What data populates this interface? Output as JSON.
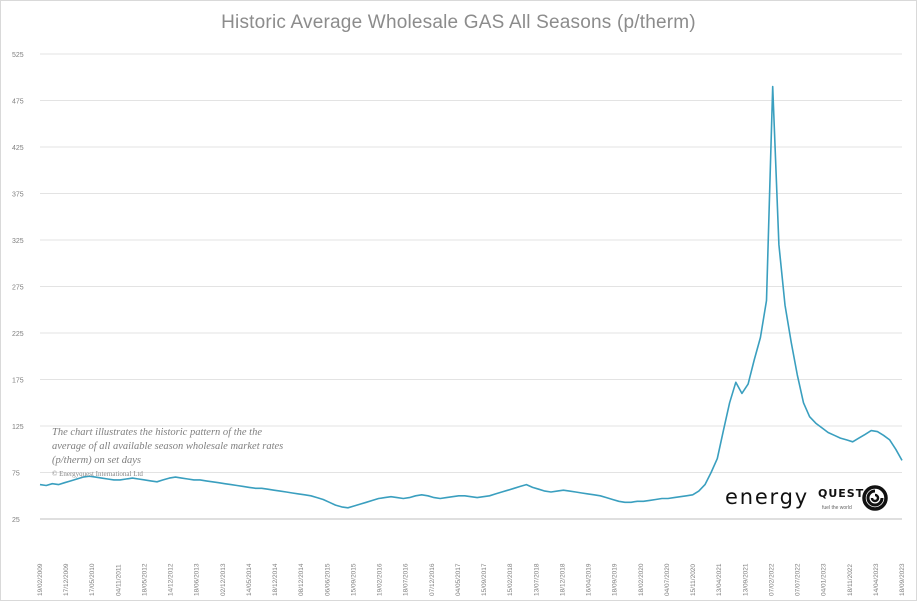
{
  "chart_data": {
    "type": "line",
    "title": "Historic Average Wholesale GAS All Seasons (p/therm)",
    "xlabel": "",
    "ylabel": "",
    "ylim": [
      25,
      525
    ],
    "yticks": [
      "525",
      "475",
      "425",
      "375",
      "325",
      "275",
      "225",
      "175",
      "125",
      "75",
      "25"
    ],
    "grid": true,
    "legend": "none",
    "line_color": "#3a9fbf",
    "xtick_labels": [
      "19/02/2009",
      "17/12/2009",
      "17/05/2010",
      "04/11/2011",
      "18/05/2012",
      "14/12/2012",
      "18/06/2013",
      "02/12/2013",
      "14/05/2014",
      "18/12/2014",
      "08/12/2014",
      "06/06/2015",
      "15/09/2015",
      "19/02/2016",
      "18/07/2016",
      "07/12/2016",
      "04/05/2017",
      "15/09/2017",
      "15/02/2018",
      "13/07/2018",
      "18/12/2018",
      "16/04/2019",
      "18/09/2019",
      "18/02/2020",
      "04/07/2020",
      "15/11/2020",
      "13/04/2021",
      "13/09/2021",
      "07/02/2022",
      "07/07/2022",
      "04/01/2023",
      "18/11/2022",
      "14/04/2023",
      "18/09/2023"
    ],
    "series": [
      {
        "values": [
          62,
          61,
          63,
          62,
          64,
          66,
          68,
          70,
          71,
          70,
          69,
          68,
          67,
          67,
          68,
          69,
          68,
          67,
          66,
          65,
          67,
          69,
          70,
          69,
          68,
          67,
          67,
          66,
          65,
          64,
          63,
          62,
          61,
          60,
          59,
          58,
          58,
          57,
          56,
          55,
          54,
          53,
          52,
          51,
          50,
          48,
          46,
          43,
          40,
          38,
          37,
          39,
          41,
          43,
          45,
          47,
          48,
          49,
          48,
          47,
          48,
          50,
          51,
          50,
          48,
          47,
          48,
          49,
          50,
          50,
          49,
          48,
          49,
          50,
          52,
          54,
          56,
          58,
          60,
          62,
          59,
          57,
          55,
          54,
          55,
          56,
          55,
          54,
          53,
          52,
          51,
          50,
          48,
          46,
          44,
          43,
          43,
          44,
          44,
          45,
          46,
          47,
          47,
          48,
          49,
          50,
          51,
          55,
          62,
          75,
          90,
          120,
          150,
          172,
          160,
          170,
          196,
          220,
          260,
          490,
          320,
          255,
          215,
          180,
          150,
          135,
          128,
          123,
          118,
          115,
          112,
          110,
          108,
          112,
          116,
          120,
          119,
          115,
          110,
          100,
          88
        ]
      }
    ]
  },
  "note": {
    "text": "The chart illustrates the historic pattern of the the average of all available season wholesale market rates (p/therm) on set days",
    "copyright": "© Energyquest International Ltd"
  },
  "logo": {
    "word": "energy",
    "q": "QUEST",
    "tagline": "fuel the world"
  }
}
